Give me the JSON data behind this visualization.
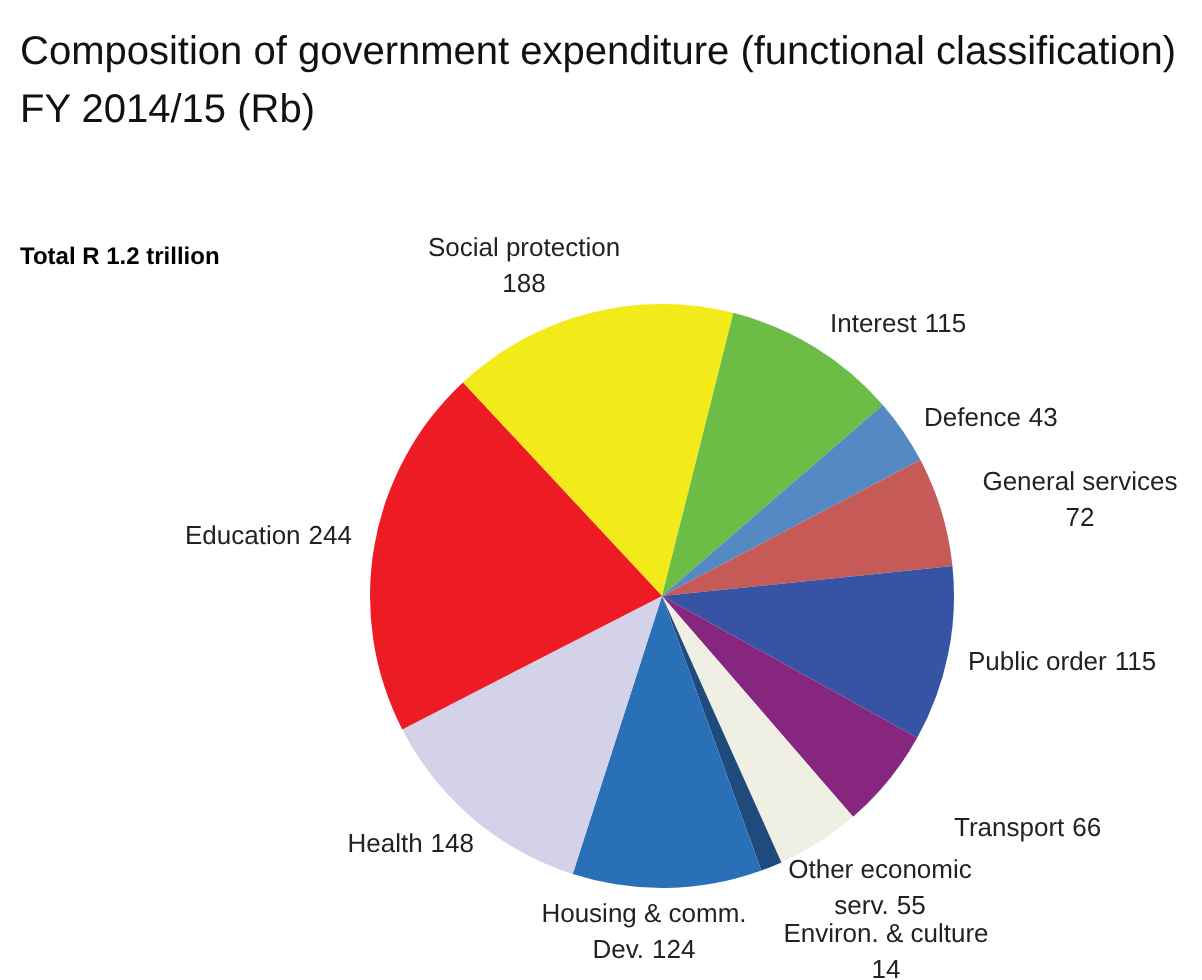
{
  "chart_data": {
    "type": "pie",
    "title": "Composition of government expenditure (functional classification) FY 2014/15 (Rb)",
    "annotations": [
      "Total R 1.2 trillion"
    ],
    "categories": [
      "Social protection",
      "Interest",
      "Defence",
      "General services",
      "Public order",
      "Transport",
      "Other economic serv.",
      "Environ. & culture",
      "Housing & comm. Dev.",
      "Health",
      "Education"
    ],
    "values": [
      188,
      115,
      43,
      72,
      115,
      66,
      55,
      14,
      124,
      148,
      244
    ],
    "colors": [
      "#f2eb19",
      "#6bbd45",
      "#5589c4",
      "#c65a57",
      "#3753a3",
      "#87267f",
      "#f0efe3",
      "#1f4b7c",
      "#2a70b6",
      "#d3d2e9",
      "#ed1c24"
    ],
    "data_labels": true
  }
}
